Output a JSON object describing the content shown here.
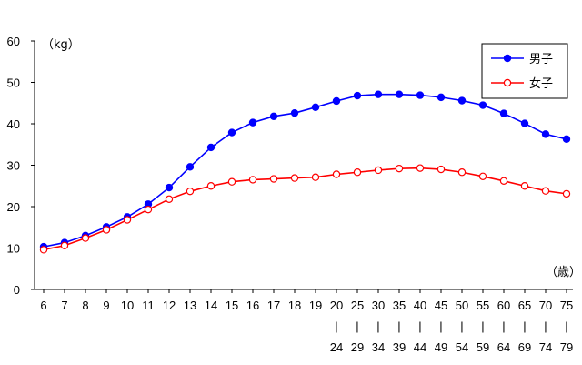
{
  "chart_data": {
    "type": "line",
    "ylabel": "（kg）",
    "xlabel": "（歳）",
    "ylim": [
      0,
      60
    ],
    "yticks": [
      "0",
      "10",
      "20",
      "30",
      "40",
      "50",
      "60"
    ],
    "categories": [
      "6",
      "7",
      "8",
      "9",
      "10",
      "11",
      "12",
      "13",
      "14",
      "15",
      "16",
      "17",
      "18",
      "19",
      "20",
      "25",
      "30",
      "35",
      "40",
      "45",
      "50",
      "55",
      "60",
      "65",
      "70",
      "75"
    ],
    "category_ranges": [
      {
        "from": "20",
        "to": "24"
      },
      {
        "from": "25",
        "to": "29"
      },
      {
        "from": "30",
        "to": "34"
      },
      {
        "from": "35",
        "to": "39"
      },
      {
        "from": "40",
        "to": "44"
      },
      {
        "from": "45",
        "to": "49"
      },
      {
        "from": "50",
        "to": "54"
      },
      {
        "from": "55",
        "to": "59"
      },
      {
        "from": "60",
        "to": "64"
      },
      {
        "from": "65",
        "to": "69"
      },
      {
        "from": "70",
        "to": "74"
      },
      {
        "from": "75",
        "to": "79"
      }
    ],
    "range_separator": "|",
    "grid": false,
    "legend_position": "top-right",
    "series": [
      {
        "name": "男子",
        "color": "#0000ff",
        "marker": "filled-circle",
        "values": [
          10.3,
          11.3,
          13.0,
          15.1,
          17.5,
          20.6,
          24.6,
          29.6,
          34.3,
          37.9,
          40.3,
          41.8,
          42.6,
          44.0,
          45.5,
          46.8,
          47.1,
          47.1,
          46.9,
          46.4,
          45.6,
          44.5,
          42.5,
          40.1,
          37.5,
          36.3
        ]
      },
      {
        "name": "女子",
        "color": "#ff0000",
        "marker": "open-circle",
        "values": [
          9.6,
          10.6,
          12.4,
          14.4,
          16.8,
          19.3,
          21.8,
          23.7,
          25.0,
          26.0,
          26.5,
          26.7,
          26.9,
          27.1,
          27.8,
          28.3,
          28.8,
          29.2,
          29.3,
          29.0,
          28.3,
          27.3,
          26.2,
          25.0,
          23.8,
          23.1
        ]
      }
    ]
  }
}
